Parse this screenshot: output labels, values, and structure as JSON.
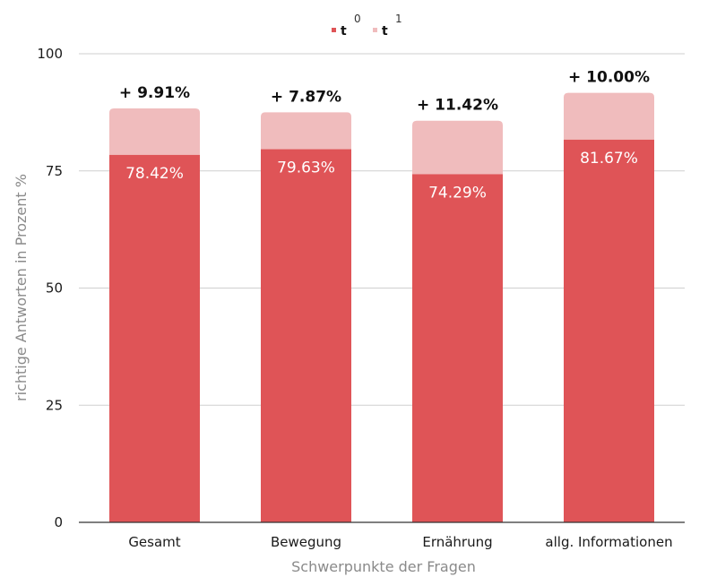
{
  "chart_data": {
    "type": "bar",
    "stacked": true,
    "categories": [
      "Gesamt",
      "Bewegung",
      "Ernährung",
      "allg. Informationen"
    ],
    "series": [
      {
        "name": "t0",
        "values": [
          78.42,
          79.63,
          74.29,
          81.67
        ]
      },
      {
        "name": "t1",
        "values": [
          9.91,
          7.87,
          11.42,
          10.0
        ]
      }
    ],
    "base_labels": [
      "78.42%",
      "79.63%",
      "74.29%",
      "81.67%"
    ],
    "increase_labels": [
      "+ 9.91%",
      "+ 7.87%",
      "+ 11.42%",
      "+ 10.00%"
    ],
    "xlabel": "Schwerpunkte der Fragen",
    "ylabel": "richtige Antworten in Prozent %",
    "ylim": [
      0,
      100
    ],
    "yticks": [
      "0",
      "25",
      "50",
      "75",
      "100"
    ],
    "grid": true,
    "legend_position": "top-center",
    "legend": [
      {
        "text": "t",
        "sup": "0",
        "color": "#df5457"
      },
      {
        "text": "t",
        "sup": "1",
        "color": "#f0bcbd"
      }
    ],
    "colors": {
      "t0": "#df5457",
      "t1": "#f0bcbd"
    }
  }
}
